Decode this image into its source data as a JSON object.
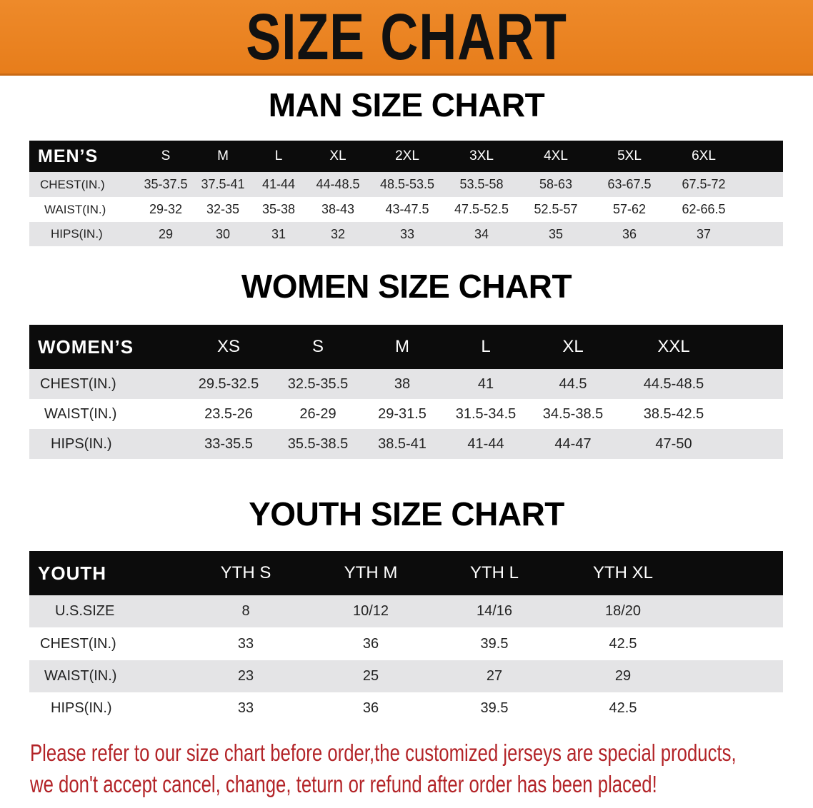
{
  "banner": {
    "title": "SIZE CHART",
    "color": "#e8821f"
  },
  "men": {
    "title": "MAN SIZE CHART",
    "header_label": "MEN’S",
    "sizes": [
      "S",
      "M",
      "L",
      "XL",
      "2XL",
      "3XL",
      "4XL",
      "5XL",
      "6XL"
    ],
    "rows": [
      {
        "label": "CHEST(IN.)",
        "values": [
          "35-37.5",
          "37.5-41",
          "41-44",
          "44-48.5",
          "48.5-53.5",
          "53.5-58",
          "58-63",
          "63-67.5",
          "67.5-72"
        ]
      },
      {
        "label": "WAIST(IN.)",
        "values": [
          "29-32",
          "32-35",
          "35-38",
          "38-43",
          "43-47.5",
          "47.5-52.5",
          "52.5-57",
          "57-62",
          "62-66.5"
        ]
      },
      {
        "label": "HIPS(IN.)",
        "values": [
          "29",
          "30",
          "31",
          "32",
          "33",
          "34",
          "35",
          "36",
          "37"
        ]
      }
    ]
  },
  "women": {
    "title": "WOMEN SIZE CHART",
    "header_label": "WOMEN’S",
    "sizes": [
      "XS",
      "S",
      "M",
      "L",
      "XL",
      "XXL"
    ],
    "rows": [
      {
        "label": "CHEST(IN.)",
        "values": [
          "29.5-32.5",
          "32.5-35.5",
          "38",
          "41",
          "44.5",
          "44.5-48.5"
        ]
      },
      {
        "label": "WAIST(IN.)",
        "values": [
          "23.5-26",
          "26-29",
          "29-31.5",
          "31.5-34.5",
          "34.5-38.5",
          "38.5-42.5"
        ]
      },
      {
        "label": "HIPS(IN.)",
        "values": [
          "33-35.5",
          "35.5-38.5",
          "38.5-41",
          "41-44",
          "44-47",
          "47-50"
        ]
      }
    ]
  },
  "youth": {
    "title": "YOUTH SIZE CHART",
    "header_label": "YOUTH",
    "sizes": [
      "YTH S",
      "YTH M",
      "YTH L",
      "YTH XL"
    ],
    "rows": [
      {
        "label": "U.S.SIZE",
        "values": [
          "8",
          "10/12",
          "14/16",
          "18/20"
        ]
      },
      {
        "label": "CHEST(IN.)",
        "values": [
          "33",
          "36",
          "39.5",
          "42.5"
        ]
      },
      {
        "label": "WAIST(IN.)",
        "values": [
          "23",
          "25",
          "27",
          "29"
        ]
      },
      {
        "label": "HIPS(IN.)",
        "values": [
          "33",
          "36",
          "39.5",
          "42.5"
        ]
      }
    ]
  },
  "notice": {
    "line1": "Please refer to our size chart before order,the customized jerseys are special products,",
    "line2": "we don't accept cancel, change, teturn or refund after order has been placed!",
    "color": "#b32428"
  }
}
